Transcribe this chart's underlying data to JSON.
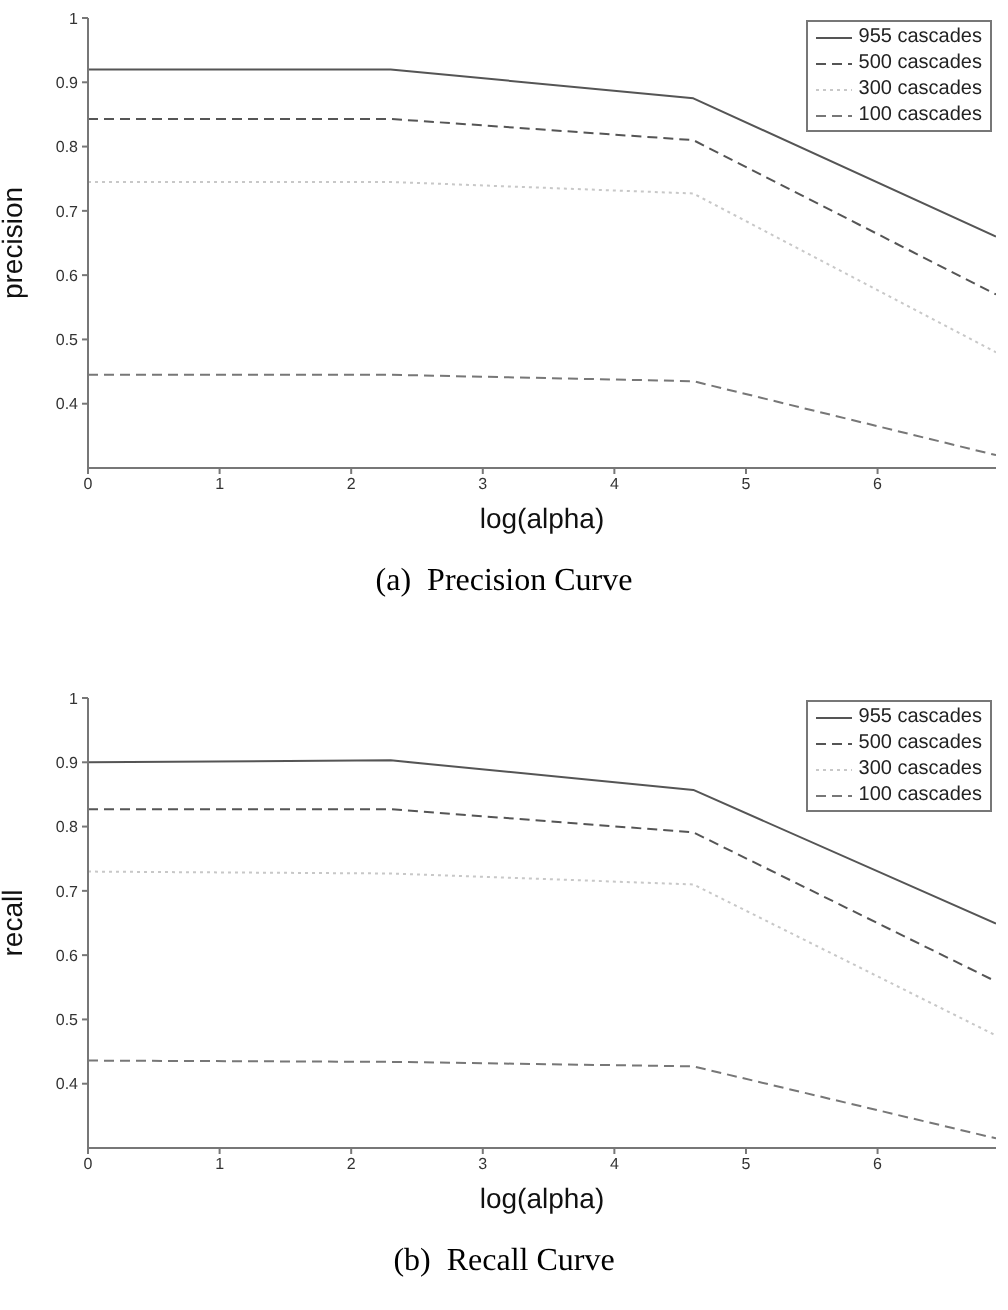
{
  "chart_data": [
    {
      "type": "line",
      "xlabel": "log(alpha)",
      "ylabel": "precision",
      "x": [
        0,
        2.3,
        4.6,
        6.9
      ],
      "xlim": [
        0,
        6.9
      ],
      "xticks": [
        0,
        1,
        2,
        3,
        4,
        5,
        6
      ],
      "ylim": [
        0.3,
        1
      ],
      "yticks": [
        0.4,
        0.5,
        0.6,
        0.7,
        0.8,
        0.9,
        1
      ],
      "grid": false,
      "legend": "top right",
      "marker": "none",
      "annotations": [
        "(a)  Precision Curve"
      ],
      "series": [
        {
          "name": "955 cascades",
          "color": "#555555",
          "line_style": "solid",
          "values": [
            0.92,
            0.92,
            0.875,
            0.66
          ]
        },
        {
          "name": "500 cascades",
          "color": "#555555",
          "line_style": "dashed",
          "values": [
            0.843,
            0.843,
            0.81,
            0.57
          ]
        },
        {
          "name": "300 cascades",
          "color": "#c8c8c8",
          "line_style": "dotted",
          "values": [
            0.745,
            0.745,
            0.727,
            0.48
          ]
        },
        {
          "name": "100 cascades",
          "color": "#777777",
          "line_style": "dashed",
          "values": [
            0.445,
            0.445,
            0.435,
            0.32
          ]
        }
      ]
    },
    {
      "type": "line",
      "xlabel": "log(alpha)",
      "ylabel": "recall",
      "x": [
        0,
        2.3,
        4.6,
        6.9
      ],
      "xlim": [
        0,
        6.9
      ],
      "xticks": [
        0,
        1,
        2,
        3,
        4,
        5,
        6
      ],
      "ylim": [
        0.3,
        1
      ],
      "yticks": [
        0.4,
        0.5,
        0.6,
        0.7,
        0.8,
        0.9,
        1
      ],
      "grid": false,
      "legend": "top right",
      "marker": "none",
      "annotations": [
        "(b)  Recall Curve"
      ],
      "series": [
        {
          "name": "955 cascades",
          "color": "#555555",
          "line_style": "solid",
          "values": [
            0.9,
            0.903,
            0.857,
            0.649
          ]
        },
        {
          "name": "500 cascades",
          "color": "#555555",
          "line_style": "dashed",
          "values": [
            0.827,
            0.827,
            0.791,
            0.559
          ]
        },
        {
          "name": "300 cascades",
          "color": "#c8c8c8",
          "line_style": "dotted",
          "values": [
            0.73,
            0.727,
            0.71,
            0.475
          ]
        },
        {
          "name": "100 cascades",
          "color": "#777777",
          "line_style": "dashed",
          "values": [
            0.436,
            0.434,
            0.427,
            0.315
          ]
        }
      ]
    }
  ]
}
